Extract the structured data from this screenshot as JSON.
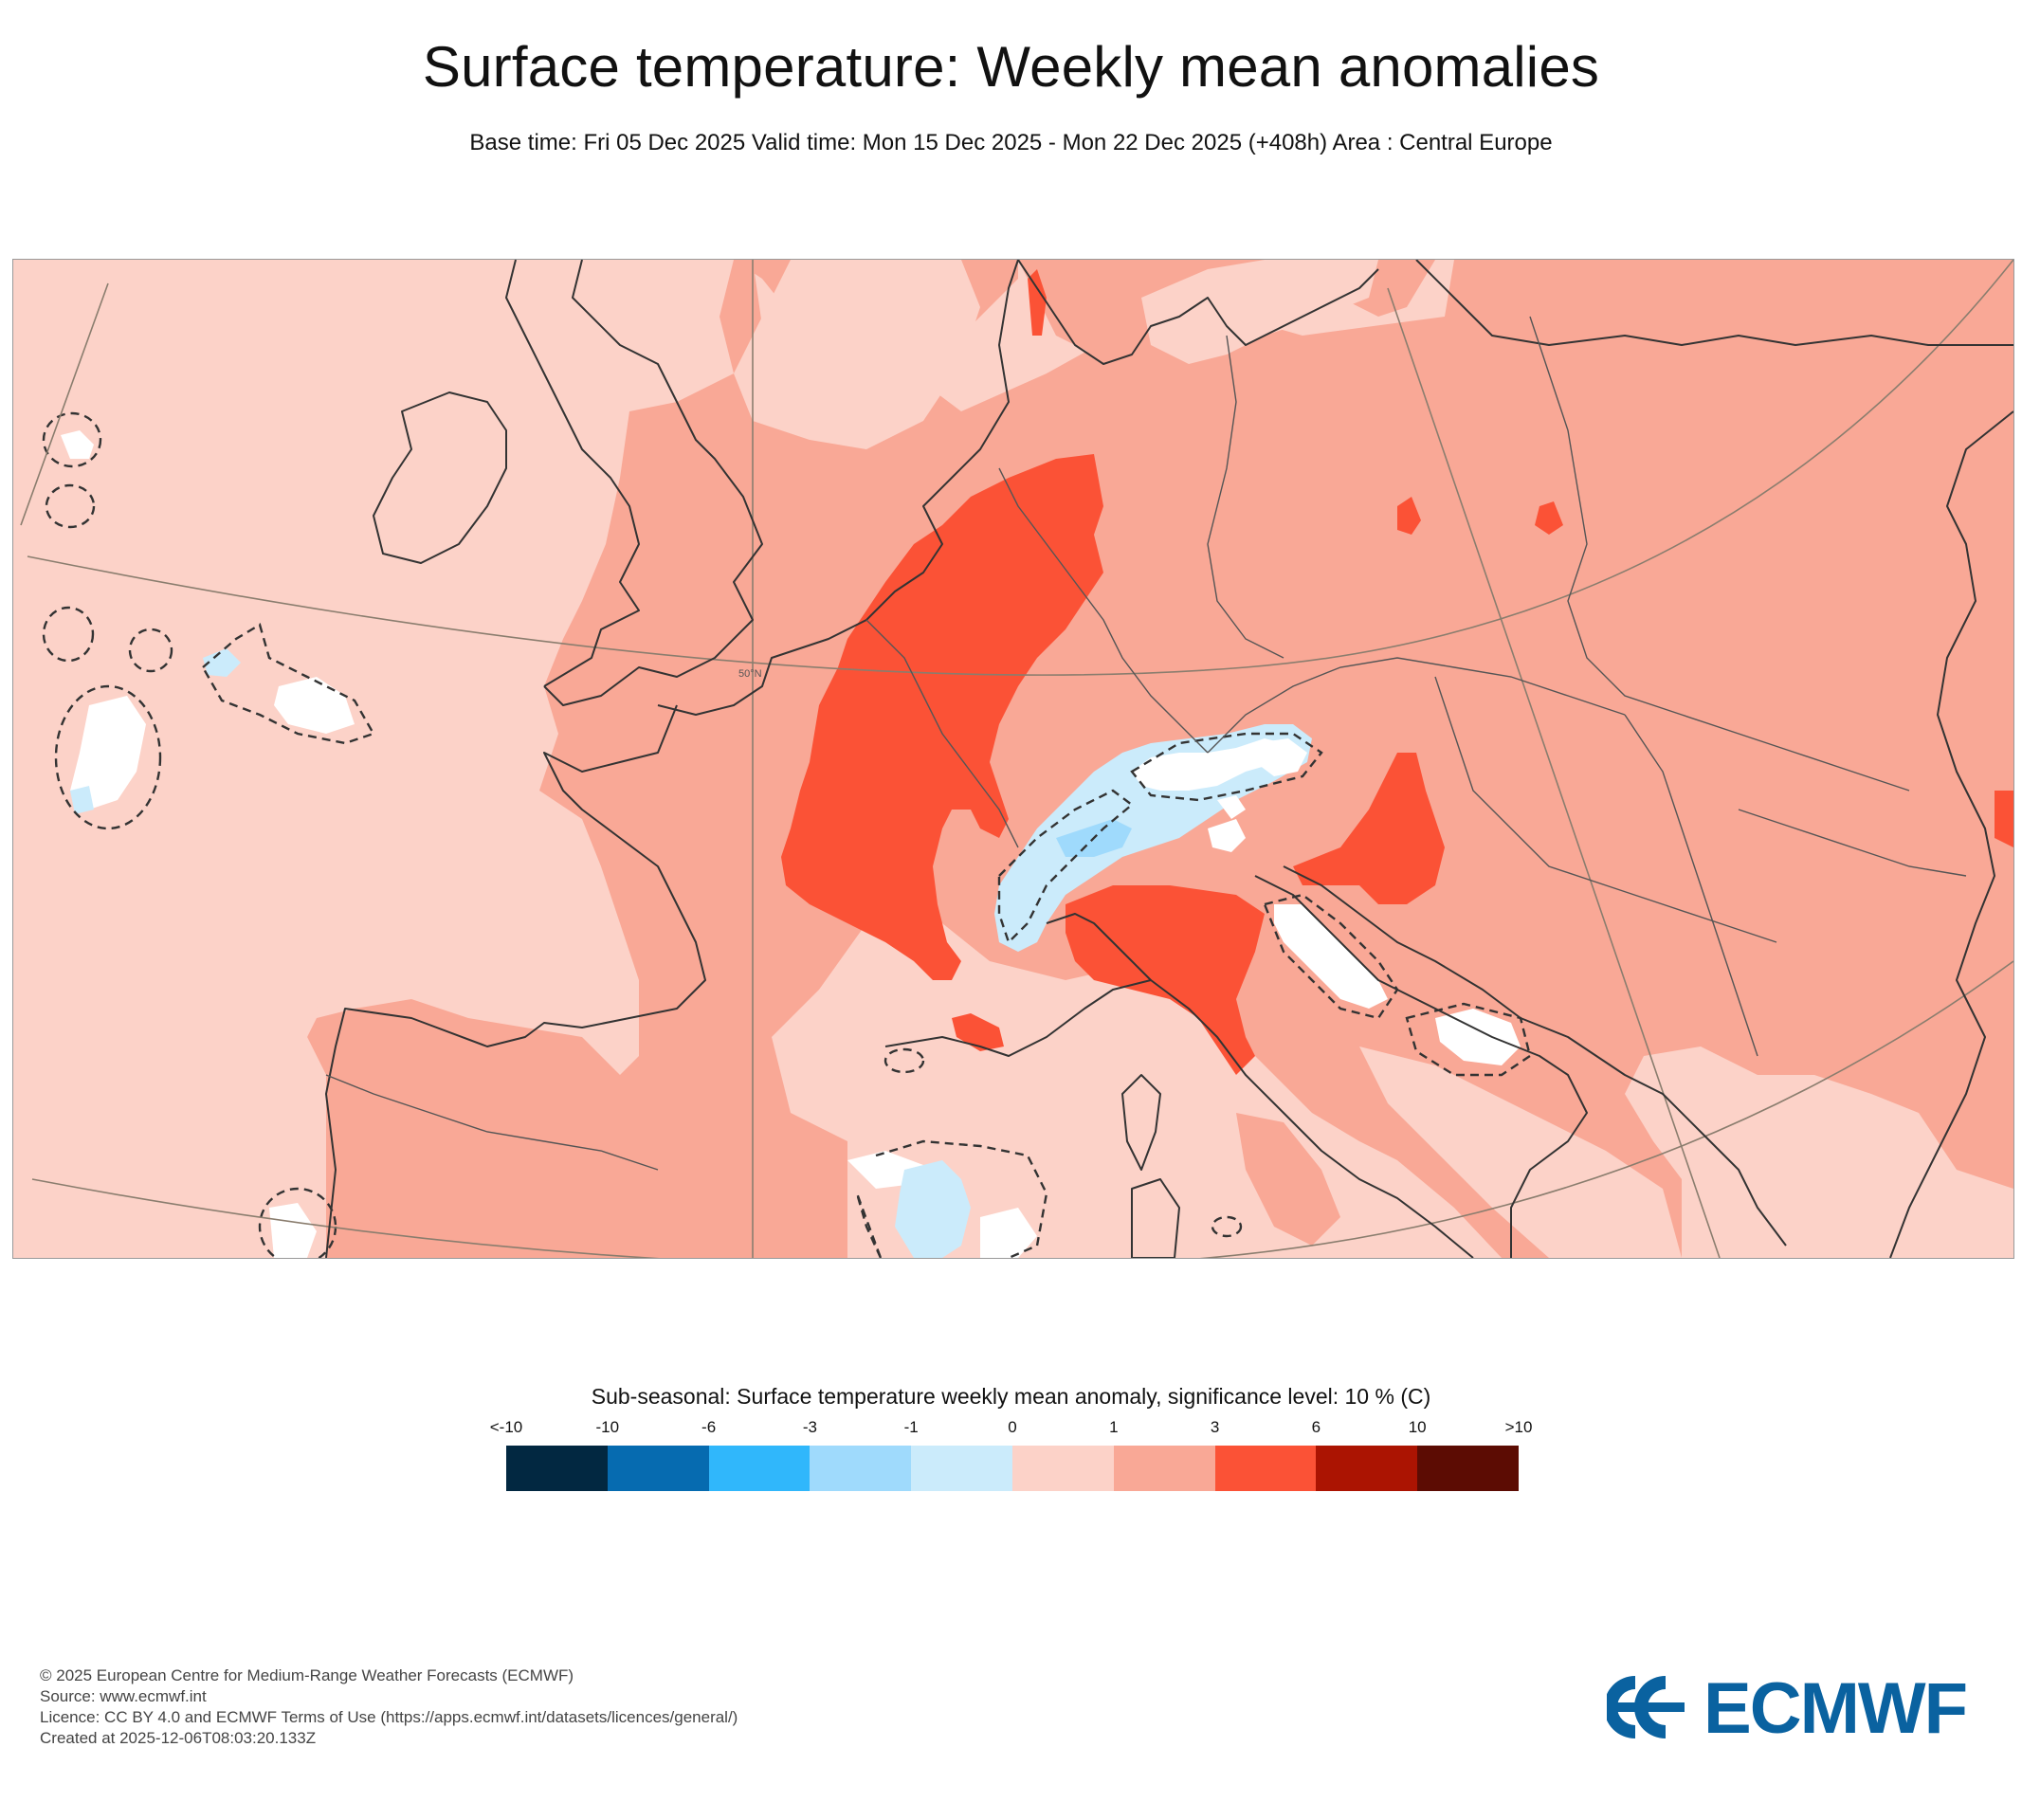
{
  "header": {
    "title": "Surface temperature: Weekly mean anomalies",
    "subtitle": "Base time: Fri 05 Dec 2025 Valid time: Mon 15 Dec 2025 - Mon 22 Dec 2025 (+408h) Area : Central Europe"
  },
  "map": {
    "region": "Central Europe",
    "graticule_label": "50°N",
    "dominant_category": "1 to 3",
    "colors": {
      "background_weak_positive": "#fcd2c8",
      "moderate_positive": "#f9a896",
      "strong_positive": "#fb5236",
      "weak_negative": "#cbebfb",
      "moderate_negative": "#9fdafc",
      "insignificant": "#ffffff",
      "coastline": "#333333",
      "graticule": "#8a7d6e"
    }
  },
  "legend": {
    "title": "Sub-seasonal: Surface temperature weekly mean anomaly, significance level: 10 % (C)",
    "tick_labels": [
      "<-10",
      "-10",
      "-6",
      "-3",
      "-1",
      "0",
      "1",
      "3",
      "6",
      "10",
      ">10"
    ],
    "colors": [
      "#022841",
      "#066bb0",
      "#30b7fb",
      "#9fdafc",
      "#cbebfb",
      "#fcd2c8",
      "#f9a896",
      "#fb5236",
      "#ab1402",
      "#5c0c03"
    ]
  },
  "footer": {
    "lines": [
      "© 2025 European Centre for Medium-Range Weather Forecasts (ECMWF)",
      "Source: www.ecmwf.int",
      "Licence: CC BY 4.0 and ECMWF Terms of Use (https://apps.ecmwf.int/datasets/licences/general/)",
      "Created at 2025-12-06T08:03:20.133Z"
    ]
  },
  "logo": {
    "text": "ECMWF",
    "color": "#0a62a0"
  }
}
